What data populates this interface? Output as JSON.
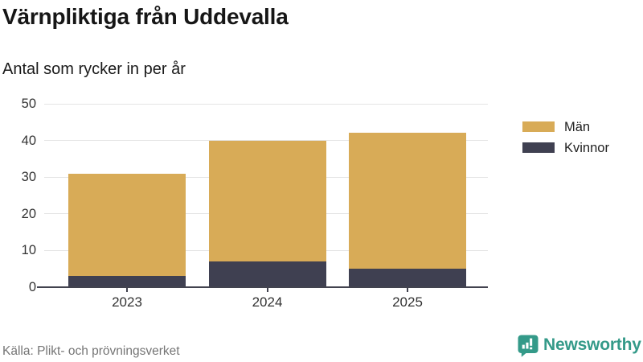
{
  "header": {
    "title": "Värnpliktiga från Uddevalla",
    "subtitle": "Antal som rycker in per år"
  },
  "chart_data": {
    "type": "bar",
    "stacked": true,
    "categories": [
      "2023",
      "2024",
      "2025"
    ],
    "series": [
      {
        "name": "Män",
        "color": "#d8ab57",
        "values": [
          28,
          33,
          37
        ]
      },
      {
        "name": "Kvinnor",
        "color": "#3f4051",
        "values": [
          3,
          7,
          5
        ]
      }
    ],
    "stacked_totals": [
      31,
      40,
      42
    ],
    "ylim": [
      0,
      50
    ],
    "yticks": [
      0,
      10,
      20,
      30,
      40,
      50
    ],
    "grid": "horizontal",
    "legend_position": "right"
  },
  "footer": {
    "source": "Källa: Plikt- och prövningsverket",
    "brand": "Newsworthy"
  },
  "colors": {
    "accent_teal": "#349a89",
    "grid": "#e4e4e4",
    "axis": "#42434f",
    "text_dark": "#1a1a1a",
    "text_muted": "#757575"
  }
}
